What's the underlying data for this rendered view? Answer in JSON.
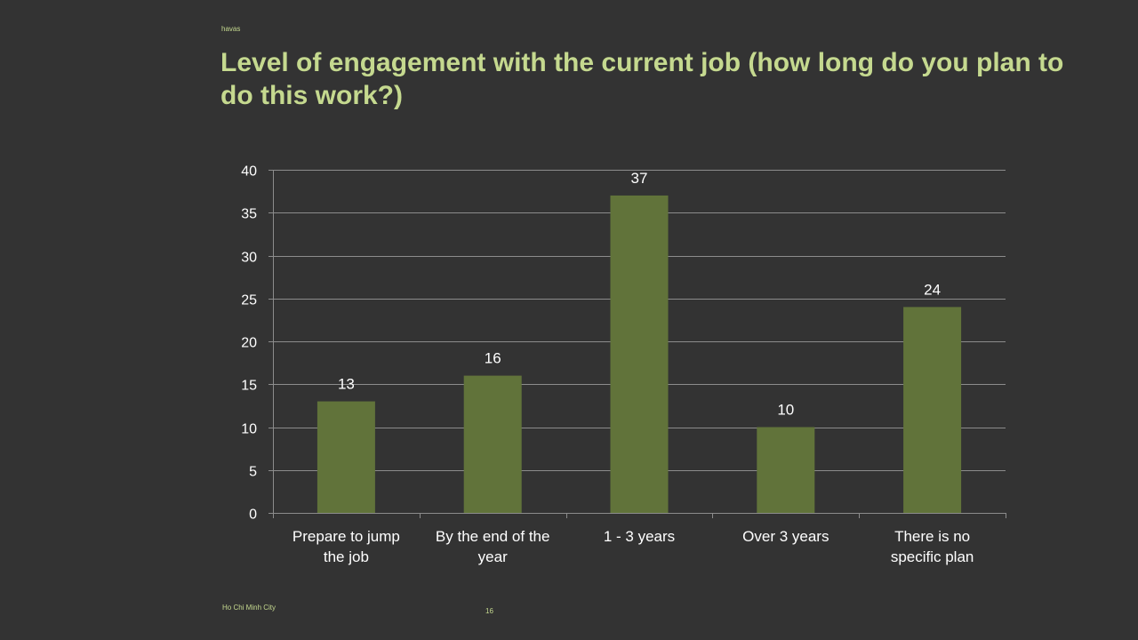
{
  "slide": {
    "brand": "havas",
    "title": "Level of engagement with the current job (how long do you plan to do this work?)",
    "footer_location": "Ho Chi Minh City",
    "page_number": "16"
  },
  "colors": {
    "background": "#333333",
    "title": "#c5d98f",
    "bar": "#61733a",
    "gridline": "#8c8c8c",
    "text": "#ffffff"
  },
  "chart_data": {
    "type": "bar",
    "title": "",
    "xlabel": "",
    "ylabel": "",
    "categories": [
      [
        "Prepare to jump",
        "the job"
      ],
      [
        "By the end of the",
        "year"
      ],
      [
        "1 - 3 years"
      ],
      [
        "Over 3 years"
      ],
      [
        "There is no",
        "specific plan"
      ]
    ],
    "values": [
      13,
      16,
      37,
      10,
      24
    ],
    "data_labels": [
      "13",
      "16",
      "37",
      "10",
      "24"
    ],
    "ylim": [
      0,
      40
    ],
    "yticks": [
      0,
      5,
      10,
      15,
      20,
      25,
      30,
      35,
      40
    ],
    "grid": true,
    "legend": "none"
  }
}
